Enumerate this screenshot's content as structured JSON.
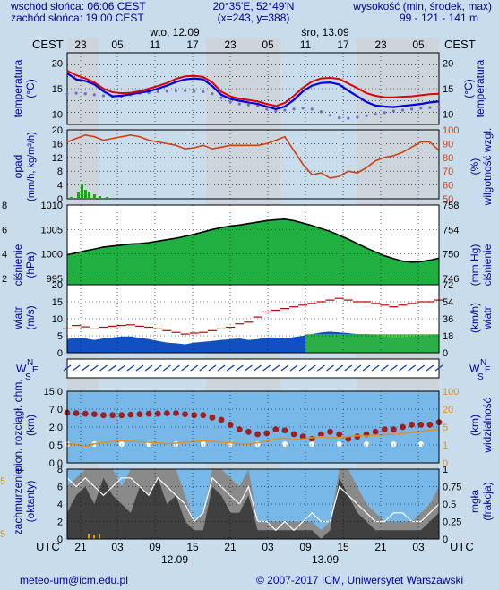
{
  "header": {
    "sunrise": "wschód słońca: 06:06 CEST",
    "sunset": "zachód słońca: 19:00 CEST",
    "coords": "20°35'E, 52°49'N",
    "grid": "(x=243,  y=388)",
    "height_label": "wysokość (min, środek, max)",
    "height_values": "99 - 121 - 141 m"
  },
  "top_axis": {
    "tz_left": "CEST",
    "tz_right": "CEST",
    "day1": "wto, 12.09",
    "day2": "śro, 13.09",
    "hours": [
      "23",
      "05",
      "11",
      "17",
      "23",
      "05",
      "11",
      "17",
      "23",
      "05"
    ]
  },
  "bottom_axis": {
    "tz_left": "UTC",
    "tz_right": "UTC",
    "hours": [
      "21",
      "03",
      "09",
      "15",
      "21",
      "03",
      "09",
      "15",
      "21",
      "03"
    ],
    "date1": "12.09",
    "date2": "13.09"
  },
  "labels": {
    "temp_l1": "temperatura",
    "temp_l2": "(°C)",
    "temp_r1": "temperatura",
    "temp_r2": "(°C)",
    "rain_l1": "opad",
    "rain_l2": "(mm/h, kg/m²/h)",
    "rain_r1": "wilgotność wzgl.",
    "rain_r2": "(%)",
    "pres_l1": "ciśnienie",
    "pres_l2": "(hPa)",
    "pres_r1": "ciśnienie",
    "pres_r2": "(mm Hg)",
    "wind_l1": "wiatr",
    "wind_l2": "(m/s)",
    "wind_r1": "wiatr",
    "wind_r2": "(km/h)",
    "cloud_l1": "pion. rozciągł. chm.",
    "cloud_l2": "(km)",
    "cloud_r1": "widzialność",
    "cloud_r2": "(km)",
    "frac_l1": "zachmurzenie",
    "frac_l2": "(oktanty)",
    "frac_r1": "mgła",
    "frac_r2": "(frakcja)",
    "compass": [
      "N",
      "W",
      "E",
      "S"
    ]
  },
  "ticks": {
    "temp_left": [
      "20",
      "15",
      "10"
    ],
    "temp_right": [
      "20",
      "15",
      "10"
    ],
    "rain_left": [
      "20",
      "16",
      "12",
      "8",
      "4",
      "0"
    ],
    "rain_right": [
      "100",
      "90",
      "80",
      "70",
      "60",
      "50"
    ],
    "pres_left": [
      "1010",
      "1005",
      "1000",
      "995"
    ],
    "pres_right": [
      "758",
      "754",
      "750",
      "746"
    ],
    "pres_far_left": [
      "8",
      "6",
      "4",
      "2"
    ],
    "wind_left": [
      "20",
      "15",
      "10",
      "5",
      "0"
    ],
    "wind_right": [
      "72",
      "54",
      "36",
      "18",
      "0"
    ],
    "cloud_left": [
      "15.0",
      "7.0",
      "2.0",
      "0.5",
      "0.0"
    ],
    "cloud_right": [
      "100",
      "20",
      "5",
      "1",
      "0"
    ],
    "frac_left": [
      "8",
      "6",
      "4",
      "2",
      "0"
    ],
    "frac_right": [
      "1",
      "0.75",
      "0.5",
      "0.25",
      "0"
    ],
    "frac_far_left": [
      "5",
      "5"
    ]
  },
  "footer": {
    "email": "meteo-um@icm.edu.pl",
    "copyright": "© 2007-2017 ICM, Uniwersytet Warszawski"
  },
  "colors": {
    "background": "#c8dcec",
    "temp_red": "#e00000",
    "temp_blue": "#0000e0",
    "pressure_green": "#20a020",
    "wind_blue": "#1050c0",
    "wind_green": "#30c030",
    "humidity": "#d04010",
    "cloud_bg": "#78b8e8"
  },
  "chart_data": [
    {
      "type": "line",
      "ylim": [
        8,
        22
      ],
      "series": [
        {
          "values": [
            18.5,
            17.6,
            17.0,
            16.2,
            15.0,
            14.3,
            14.1,
            14.2,
            14.5,
            15.0,
            15.5,
            16.1,
            16.9,
            17.4,
            17.5,
            17.3,
            16.2,
            14.4,
            13.5,
            13.0,
            12.8,
            12.5,
            12.0,
            11.6,
            12.2,
            13.6,
            15.2,
            16.4,
            17.0,
            17.1,
            16.9,
            16.0,
            15.1,
            14.1,
            13.6,
            13.3,
            13.3,
            13.4,
            13.5,
            13.7,
            13.9,
            14.0
          ]
        },
        {
          "values": [
            18.0,
            16.8,
            16.5,
            15.8,
            14.5,
            13.5,
            13.6,
            13.9,
            14.2,
            14.5,
            15.0,
            15.6,
            16.3,
            16.8,
            17.0,
            16.8,
            15.5,
            13.8,
            13.0,
            12.6,
            12.3,
            12.0,
            11.5,
            11.0,
            11.5,
            12.8,
            14.5,
            15.6,
            16.1,
            16.2,
            15.8,
            14.6,
            13.5,
            12.4,
            11.7,
            11.5,
            11.4,
            11.6,
            11.8,
            12.0,
            12.3,
            12.5
          ]
        },
        {
          "values": [
            14.0,
            14.1,
            14.0,
            13.8,
            13.6,
            13.4,
            13.5,
            13.8,
            14.1,
            14.2,
            14.4,
            14.5,
            14.6,
            14.6,
            14.5,
            14.4,
            14.0,
            13.2,
            12.4,
            12.0,
            11.8,
            11.6,
            11.0,
            10.6,
            10.8,
            11.0,
            11.2,
            11.0,
            10.5,
            9.8,
            9.3,
            9.2,
            9.4,
            9.7,
            10.0,
            10.3,
            10.6,
            10.8,
            11.0,
            11.2,
            11.3,
            11.4
          ]
        }
      ]
    },
    {
      "type": "line",
      "ylim": [
        0,
        20
      ],
      "series": [
        {
          "values": [
            16.5,
            17.5,
            18.5,
            18.0,
            17.0,
            17.5,
            18.0,
            18.5,
            18.0,
            17.0,
            16.5,
            16.0,
            15.5,
            14.5,
            14.8,
            15.5,
            14.5,
            15.0,
            15.5,
            15.5,
            15.5,
            15.5,
            16.0,
            17.0,
            18.0,
            14.0,
            10.0,
            7.0,
            7.5,
            6.0,
            6.5,
            8.0,
            7.5,
            9.0,
            11.0,
            12.0,
            12.5,
            13.5,
            15.0,
            16.5,
            16.5,
            14.0
          ]
        }
      ]
    },
    {
      "type": "area",
      "ylim": [
        990,
        1010
      ],
      "series": [
        {
          "values": [
            999.8,
            1000.2,
            1000.6,
            1001.0,
            1001.4,
            1001.6,
            1001.8,
            1002.0,
            1002.1,
            1002.3,
            1002.6,
            1002.9,
            1003.2,
            1003.6,
            1004.0,
            1004.5,
            1005.0,
            1005.4,
            1005.7,
            1005.9,
            1006.2,
            1006.5,
            1006.8,
            1007.0,
            1007.1,
            1006.8,
            1006.3,
            1005.8,
            1005.2,
            1004.6,
            1003.8,
            1003.0,
            1002.1,
            1001.2,
            1000.4,
            999.6,
            999.0,
            998.5,
            998.3,
            998.4,
            998.7,
            999.1
          ]
        }
      ]
    },
    {
      "type": "area",
      "ylim": [
        0,
        20
      ],
      "series": [
        {
          "values": [
            4.0,
            4.5,
            4.2,
            3.8,
            4.2,
            4.5,
            4.8,
            4.8,
            4.4,
            4.0,
            3.5,
            3.0,
            2.8,
            2.5,
            3.0,
            3.2,
            3.5,
            3.8,
            4.0,
            4.2,
            3.8,
            4.0,
            4.5,
            4.5,
            4.2,
            4.6,
            5.0,
            5.5,
            6.0,
            6.2,
            6.0,
            5.8,
            5.5,
            5.5,
            5.2,
            4.8,
            4.5,
            4.6,
            4.8,
            5.0,
            5.2,
            5.3
          ]
        },
        {
          "values": [
            7.0,
            8.0,
            7.6,
            7.0,
            7.5,
            7.8,
            8.0,
            8.2,
            7.8,
            7.5,
            7.0,
            6.5,
            6.0,
            5.5,
            5.8,
            6.0,
            6.5,
            7.0,
            7.5,
            8.5,
            9.0,
            10.5,
            12.0,
            12.5,
            13.0,
            13.5,
            14.0,
            14.5,
            15.0,
            15.5,
            16.0,
            15.5,
            15.0,
            15.0,
            14.5,
            14.0,
            13.5,
            14.0,
            14.5,
            15.0,
            15.0,
            15.5
          ]
        }
      ]
    },
    {
      "type": "scatter",
      "ylim": [
        0,
        15
      ],
      "series": [
        {
          "values": [
            10.5,
            10.4,
            10.3,
            10.2,
            10.0,
            10.0,
            10.0,
            10.1,
            10.2,
            10.3,
            10.3,
            10.4,
            10.4,
            10.2,
            10.0,
            10.0,
            9.5,
            9.0,
            8.0,
            7.0,
            6.5,
            6.0,
            6.2,
            7.0,
            6.8,
            6.0,
            5.5,
            5.0,
            6.0,
            6.5,
            6.0,
            5.0,
            5.5,
            6.0,
            6.5,
            7.0,
            7.0,
            7.5,
            8.0,
            8.0,
            8.0,
            8.5
          ]
        }
      ]
    }
  ]
}
